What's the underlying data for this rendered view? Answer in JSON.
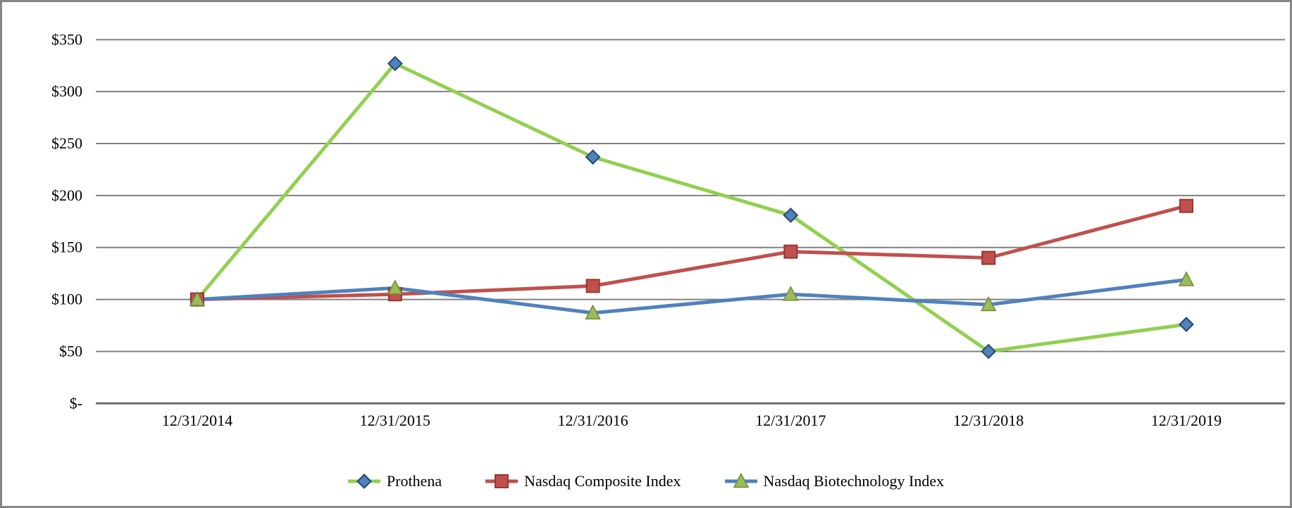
{
  "chart_data": {
    "type": "line",
    "title": "",
    "categories": [
      "12/31/2014",
      "12/31/2015",
      "12/31/2016",
      "12/31/2017",
      "12/31/2018",
      "12/31/2019"
    ],
    "series": [
      {
        "name": "Prothena",
        "values": [
          100,
          327,
          237,
          181,
          50,
          76
        ],
        "line_color": "#92D050",
        "marker": "diamond",
        "marker_fill": "#4F81BD",
        "marker_stroke": "#27476E"
      },
      {
        "name": "Nasdaq Composite Index",
        "values": [
          100,
          105,
          113,
          146,
          140,
          190
        ],
        "line_color": "#C0504D",
        "marker": "square",
        "marker_fill": "#C0504D",
        "marker_stroke": "#943634"
      },
      {
        "name": "Nasdaq Biotechnology Index",
        "values": [
          100,
          111,
          87,
          105,
          95,
          119
        ],
        "line_color": "#4F81BD",
        "marker": "triangle",
        "marker_fill": "#9BBB59",
        "marker_stroke": "#71893B"
      }
    ],
    "y_ticks": [
      {
        "value": 0,
        "label": "$-"
      },
      {
        "value": 50,
        "label": "$50"
      },
      {
        "value": 100,
        "label": "$100"
      },
      {
        "value": 150,
        "label": "$150"
      },
      {
        "value": 200,
        "label": "$200"
      },
      {
        "value": 250,
        "label": "$250"
      },
      {
        "value": 300,
        "label": "$300"
      },
      {
        "value": 350,
        "label": "$350"
      }
    ],
    "ylim": [
      0,
      350
    ],
    "xlabel": "",
    "ylabel": "",
    "grid": "horizontal",
    "legend_position": "bottom",
    "colors": {
      "gridline": "#808080",
      "axis_line": "#6E6E6E",
      "text": "#000000",
      "background": "#FFFFFF",
      "frame_border": "#868686"
    }
  }
}
